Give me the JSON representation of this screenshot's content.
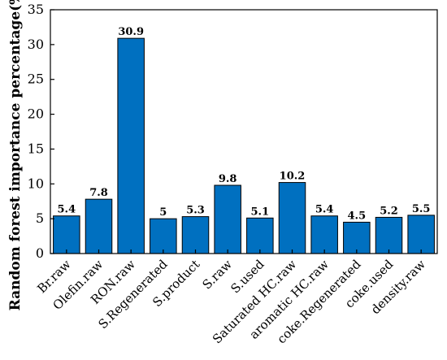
{
  "chart_data": {
    "type": "bar",
    "categories": [
      "Br.raw",
      "Olefin.raw",
      "RON.raw",
      "S.Regenerated",
      "S.product",
      "S.raw",
      "S.used",
      "Saturated HC.raw",
      "aromatic HC.raw",
      "coke.Regenerated",
      "coke.used",
      "density.raw"
    ],
    "values": [
      5.4,
      7.8,
      30.9,
      5,
      5.3,
      9.8,
      5.1,
      10.2,
      5.4,
      4.5,
      5.2,
      5.5
    ],
    "data_labels": [
      "5.4",
      "7.8",
      "30.9",
      "5",
      "5.3",
      "9.8",
      "5.1",
      "10.2",
      "5.4",
      "4.5",
      "5.2",
      "5.5"
    ],
    "ylabel": "Random forest importance percentage(%)",
    "ylim": [
      0,
      35
    ],
    "yticks": [
      0,
      5,
      10,
      15,
      20,
      25,
      30,
      35
    ],
    "ytick_labels": [
      "0",
      "5",
      "10",
      "15",
      "20",
      "25",
      "30",
      "35"
    ],
    "bar_color": "#0070c0",
    "grid": false,
    "legend": "none"
  }
}
